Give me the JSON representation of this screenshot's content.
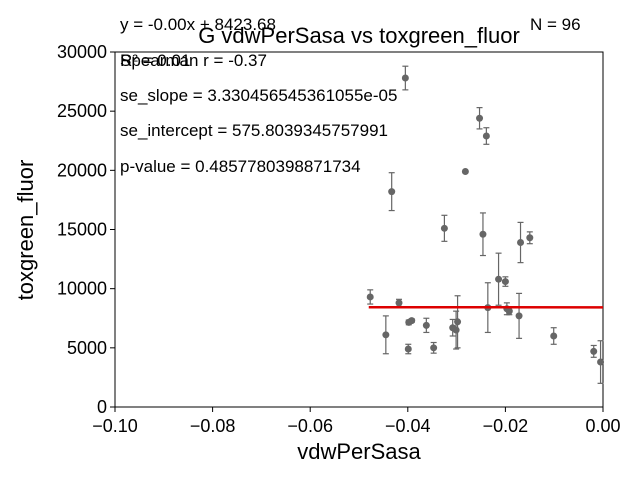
{
  "chart_data": {
    "type": "scatter",
    "title": "G vdwPerSasa vs toxgreen_fluor",
    "xlabel": "vdwPerSasa",
    "ylabel": "toxgreen_fluor",
    "xlim": [
      -0.1,
      0.0
    ],
    "ylim": [
      0,
      30000
    ],
    "xticks": [
      -0.1,
      -0.08,
      -0.06,
      -0.04,
      -0.02,
      0.0
    ],
    "xtick_labels": [
      "−0.10",
      "−0.08",
      "−0.06",
      "−0.04",
      "−0.02",
      "0.00"
    ],
    "yticks": [
      0,
      5000,
      10000,
      15000,
      20000,
      25000,
      30000
    ],
    "ytick_labels": [
      "0",
      "5000",
      "10000",
      "15000",
      "20000",
      "25000",
      "30000"
    ],
    "grid": false,
    "colors": {
      "points": "#666666",
      "errorbars": "#666666",
      "fit_line": "#dd0000"
    },
    "annotations": {
      "equation": "y = -0.00x + 8423.68",
      "r2": "R² = 0.01",
      "spearman": "Spearman r = -0.37",
      "n": "N = 96",
      "se_slope": "se_slope = 3.330456545361055e-05",
      "se_intercept": "se_intercept = 575.8039345757991",
      "p_value": "p-value = 0.4857780398871734"
    },
    "fit_line": {
      "x": [
        -0.048,
        0.0
      ],
      "y": [
        8430,
        8423.68
      ]
    },
    "points": [
      {
        "x": -0.0477,
        "y": 9300,
        "err": 600
      },
      {
        "x": -0.0445,
        "y": 6100,
        "err": 1600
      },
      {
        "x": -0.0433,
        "y": 18200,
        "err": 1600
      },
      {
        "x": -0.0418,
        "y": 8800,
        "err": 300
      },
      {
        "x": -0.0405,
        "y": 27800,
        "err": 1000
      },
      {
        "x": -0.0398,
        "y": 7150,
        "err": 200
      },
      {
        "x": -0.0392,
        "y": 7300,
        "err": 150
      },
      {
        "x": -0.0399,
        "y": 4900,
        "err": 400
      },
      {
        "x": -0.0362,
        "y": 6900,
        "err": 600
      },
      {
        "x": -0.0347,
        "y": 5000,
        "err": 450
      },
      {
        "x": -0.0325,
        "y": 15100,
        "err": 1100
      },
      {
        "x": -0.0308,
        "y": 6700,
        "err": 700
      },
      {
        "x": -0.0301,
        "y": 6500,
        "err": 1600
      },
      {
        "x": -0.0298,
        "y": 7200,
        "err": 2200
      },
      {
        "x": -0.0282,
        "y": 19900,
        "err": 0
      },
      {
        "x": -0.0253,
        "y": 24400,
        "err": 900
      },
      {
        "x": -0.0246,
        "y": 14600,
        "err": 1800
      },
      {
        "x": -0.0239,
        "y": 22900,
        "err": 700
      },
      {
        "x": -0.0236,
        "y": 8400,
        "err": 2100
      },
      {
        "x": -0.0214,
        "y": 10800,
        "err": 2200
      },
      {
        "x": -0.02,
        "y": 10600,
        "err": 400
      },
      {
        "x": -0.0197,
        "y": 8300,
        "err": 500
      },
      {
        "x": -0.0192,
        "y": 8100,
        "err": 300
      },
      {
        "x": -0.0172,
        "y": 7700,
        "err": 1900
      },
      {
        "x": -0.0169,
        "y": 13900,
        "err": 1700
      },
      {
        "x": -0.015,
        "y": 14300,
        "err": 500
      },
      {
        "x": -0.0101,
        "y": 6000,
        "err": 700
      },
      {
        "x": -0.0019,
        "y": 4700,
        "err": 500
      },
      {
        "x": -0.0005,
        "y": 3800,
        "err": 1800
      }
    ]
  }
}
